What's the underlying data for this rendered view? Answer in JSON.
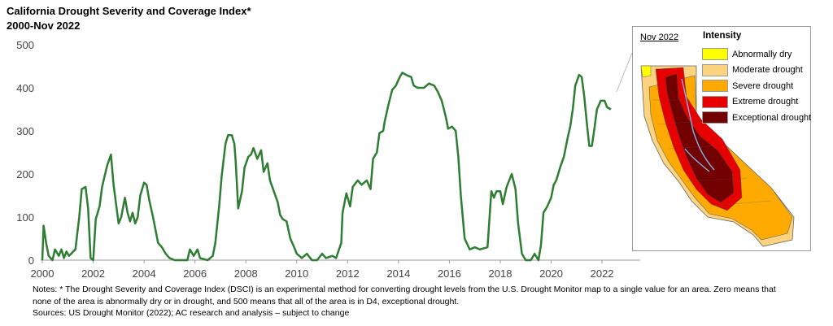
{
  "header": {
    "title_line1": "California Drought Severity and Coverage Index*",
    "title_line2": "2000-Nov 2022"
  },
  "chart_data": {
    "type": "line",
    "title": "California Drought Severity and Coverage Index*",
    "subtitle": "2000-Nov 2022",
    "xlabel": "",
    "ylabel": "",
    "xlim": [
      2000,
      2023.5
    ],
    "ylim": [
      0,
      500
    ],
    "x_ticks": [
      "2000",
      "2002",
      "2004",
      "2006",
      "2008",
      "2010",
      "2012",
      "2014",
      "2016",
      "2018",
      "2020",
      "2022"
    ],
    "y_ticks": [
      "0",
      "100",
      "200",
      "300",
      "400",
      "500"
    ],
    "grid": false,
    "line_color": "#2e7d32",
    "series": [
      {
        "values": [
          [
            2000.0,
            0
          ],
          [
            2000.05,
            80
          ],
          [
            2000.15,
            40
          ],
          [
            2000.25,
            10
          ],
          [
            2000.4,
            0
          ],
          [
            2000.5,
            25
          ],
          [
            2000.65,
            10
          ],
          [
            2000.75,
            25
          ],
          [
            2000.85,
            5
          ],
          [
            2000.95,
            20
          ],
          [
            2001.05,
            10
          ],
          [
            2001.3,
            25
          ],
          [
            2001.45,
            100
          ],
          [
            2001.55,
            165
          ],
          [
            2001.7,
            170
          ],
          [
            2001.8,
            120
          ],
          [
            2001.9,
            5
          ],
          [
            2002.0,
            0
          ],
          [
            2002.1,
            95
          ],
          [
            2002.25,
            125
          ],
          [
            2002.35,
            170
          ],
          [
            2002.45,
            195
          ],
          [
            2002.55,
            220
          ],
          [
            2002.7,
            245
          ],
          [
            2002.8,
            175
          ],
          [
            2002.9,
            130
          ],
          [
            2003.0,
            85
          ],
          [
            2003.1,
            100
          ],
          [
            2003.25,
            145
          ],
          [
            2003.35,
            110
          ],
          [
            2003.45,
            90
          ],
          [
            2003.55,
            110
          ],
          [
            2003.65,
            85
          ],
          [
            2003.75,
            100
          ],
          [
            2003.85,
            150
          ],
          [
            2004.0,
            180
          ],
          [
            2004.1,
            175
          ],
          [
            2004.2,
            140
          ],
          [
            2004.35,
            100
          ],
          [
            2004.55,
            40
          ],
          [
            2004.7,
            30
          ],
          [
            2004.85,
            15
          ],
          [
            2005.0,
            5
          ],
          [
            2005.2,
            0
          ],
          [
            2005.5,
            0
          ],
          [
            2005.7,
            0
          ],
          [
            2005.8,
            25
          ],
          [
            2005.95,
            10
          ],
          [
            2006.1,
            25
          ],
          [
            2006.2,
            5
          ],
          [
            2006.5,
            0
          ],
          [
            2006.7,
            10
          ],
          [
            2006.8,
            40
          ],
          [
            2006.95,
            125
          ],
          [
            2007.05,
            195
          ],
          [
            2007.2,
            270
          ],
          [
            2007.3,
            290
          ],
          [
            2007.45,
            290
          ],
          [
            2007.55,
            270
          ],
          [
            2007.6,
            230
          ],
          [
            2007.7,
            120
          ],
          [
            2007.85,
            160
          ],
          [
            2007.95,
            215
          ],
          [
            2008.1,
            240
          ],
          [
            2008.2,
            245
          ],
          [
            2008.3,
            260
          ],
          [
            2008.45,
            235
          ],
          [
            2008.6,
            255
          ],
          [
            2008.7,
            205
          ],
          [
            2008.85,
            225
          ],
          [
            2008.95,
            185
          ],
          [
            2009.1,
            160
          ],
          [
            2009.25,
            135
          ],
          [
            2009.35,
            105
          ],
          [
            2009.45,
            95
          ],
          [
            2009.6,
            90
          ],
          [
            2009.75,
            50
          ],
          [
            2009.9,
            30
          ],
          [
            2010.0,
            15
          ],
          [
            2010.2,
            5
          ],
          [
            2010.4,
            15
          ],
          [
            2010.6,
            0
          ],
          [
            2010.8,
            0
          ],
          [
            2011.0,
            15
          ],
          [
            2011.15,
            5
          ],
          [
            2011.4,
            10
          ],
          [
            2011.55,
            5
          ],
          [
            2011.75,
            40
          ],
          [
            2011.8,
            110
          ],
          [
            2011.95,
            155
          ],
          [
            2012.1,
            125
          ],
          [
            2012.2,
            170
          ],
          [
            2012.4,
            185
          ],
          [
            2012.55,
            175
          ],
          [
            2012.75,
            185
          ],
          [
            2012.9,
            165
          ],
          [
            2013.0,
            235
          ],
          [
            2013.15,
            250
          ],
          [
            2013.25,
            295
          ],
          [
            2013.4,
            300
          ],
          [
            2013.45,
            320
          ],
          [
            2013.6,
            360
          ],
          [
            2013.75,
            395
          ],
          [
            2013.9,
            405
          ],
          [
            2014.05,
            425
          ],
          [
            2014.15,
            435
          ],
          [
            2014.3,
            430
          ],
          [
            2014.5,
            425
          ],
          [
            2014.6,
            405
          ],
          [
            2014.75,
            400
          ],
          [
            2015.0,
            400
          ],
          [
            2015.2,
            410
          ],
          [
            2015.4,
            405
          ],
          [
            2015.55,
            390
          ],
          [
            2015.7,
            370
          ],
          [
            2015.85,
            335
          ],
          [
            2015.95,
            305
          ],
          [
            2016.1,
            310
          ],
          [
            2016.25,
            300
          ],
          [
            2016.35,
            240
          ],
          [
            2016.45,
            150
          ],
          [
            2016.6,
            50
          ],
          [
            2016.8,
            25
          ],
          [
            2017.0,
            30
          ],
          [
            2017.2,
            25
          ],
          [
            2017.5,
            30
          ],
          [
            2017.65,
            160
          ],
          [
            2017.75,
            145
          ],
          [
            2017.85,
            160
          ],
          [
            2018.0,
            160
          ],
          [
            2018.1,
            130
          ],
          [
            2018.25,
            170
          ],
          [
            2018.45,
            200
          ],
          [
            2018.6,
            165
          ],
          [
            2018.7,
            85
          ],
          [
            2018.85,
            15
          ],
          [
            2019.0,
            0
          ],
          [
            2019.2,
            0
          ],
          [
            2019.35,
            15
          ],
          [
            2019.5,
            0
          ],
          [
            2019.6,
            35
          ],
          [
            2019.7,
            110
          ],
          [
            2019.85,
            125
          ],
          [
            2020.0,
            145
          ],
          [
            2020.1,
            175
          ],
          [
            2020.2,
            185
          ],
          [
            2020.35,
            215
          ],
          [
            2020.5,
            240
          ],
          [
            2020.65,
            285
          ],
          [
            2020.75,
            310
          ],
          [
            2020.85,
            350
          ],
          [
            2020.95,
            405
          ],
          [
            2021.1,
            430
          ],
          [
            2021.2,
            425
          ],
          [
            2021.3,
            380
          ],
          [
            2021.4,
            320
          ],
          [
            2021.5,
            265
          ],
          [
            2021.6,
            265
          ],
          [
            2021.7,
            305
          ],
          [
            2021.8,
            350
          ],
          [
            2021.95,
            370
          ],
          [
            2022.1,
            370
          ],
          [
            2022.2,
            355
          ],
          [
            2022.35,
            350
          ]
        ]
      }
    ]
  },
  "notes": {
    "line1": "Notes: * The Drought Severity and Coverage Index (DSCI) is an experimental method for converting drought levels from the U.S. Drought Monitor map to a single value for an area. Zero means that",
    "line2": "none of the area is abnormally dry or in drought, and 500 means that all of the area is in D4, exceptional drought.",
    "line3": "Sources: US Drought Monitor (2022); AC research and analysis – subject to change"
  },
  "inset": {
    "date_label": "Nov 2022",
    "legend_title": "Intensity",
    "legend": [
      {
        "label": "Abnormally dry",
        "color": "#ffff00"
      },
      {
        "label": "Moderate drought",
        "color": "#fcd37f"
      },
      {
        "label": "Severe drought",
        "color": "#ffaa00"
      },
      {
        "label": "Extreme drought",
        "color": "#e60000"
      },
      {
        "label": "Exceptional drought",
        "color": "#730000"
      }
    ]
  }
}
